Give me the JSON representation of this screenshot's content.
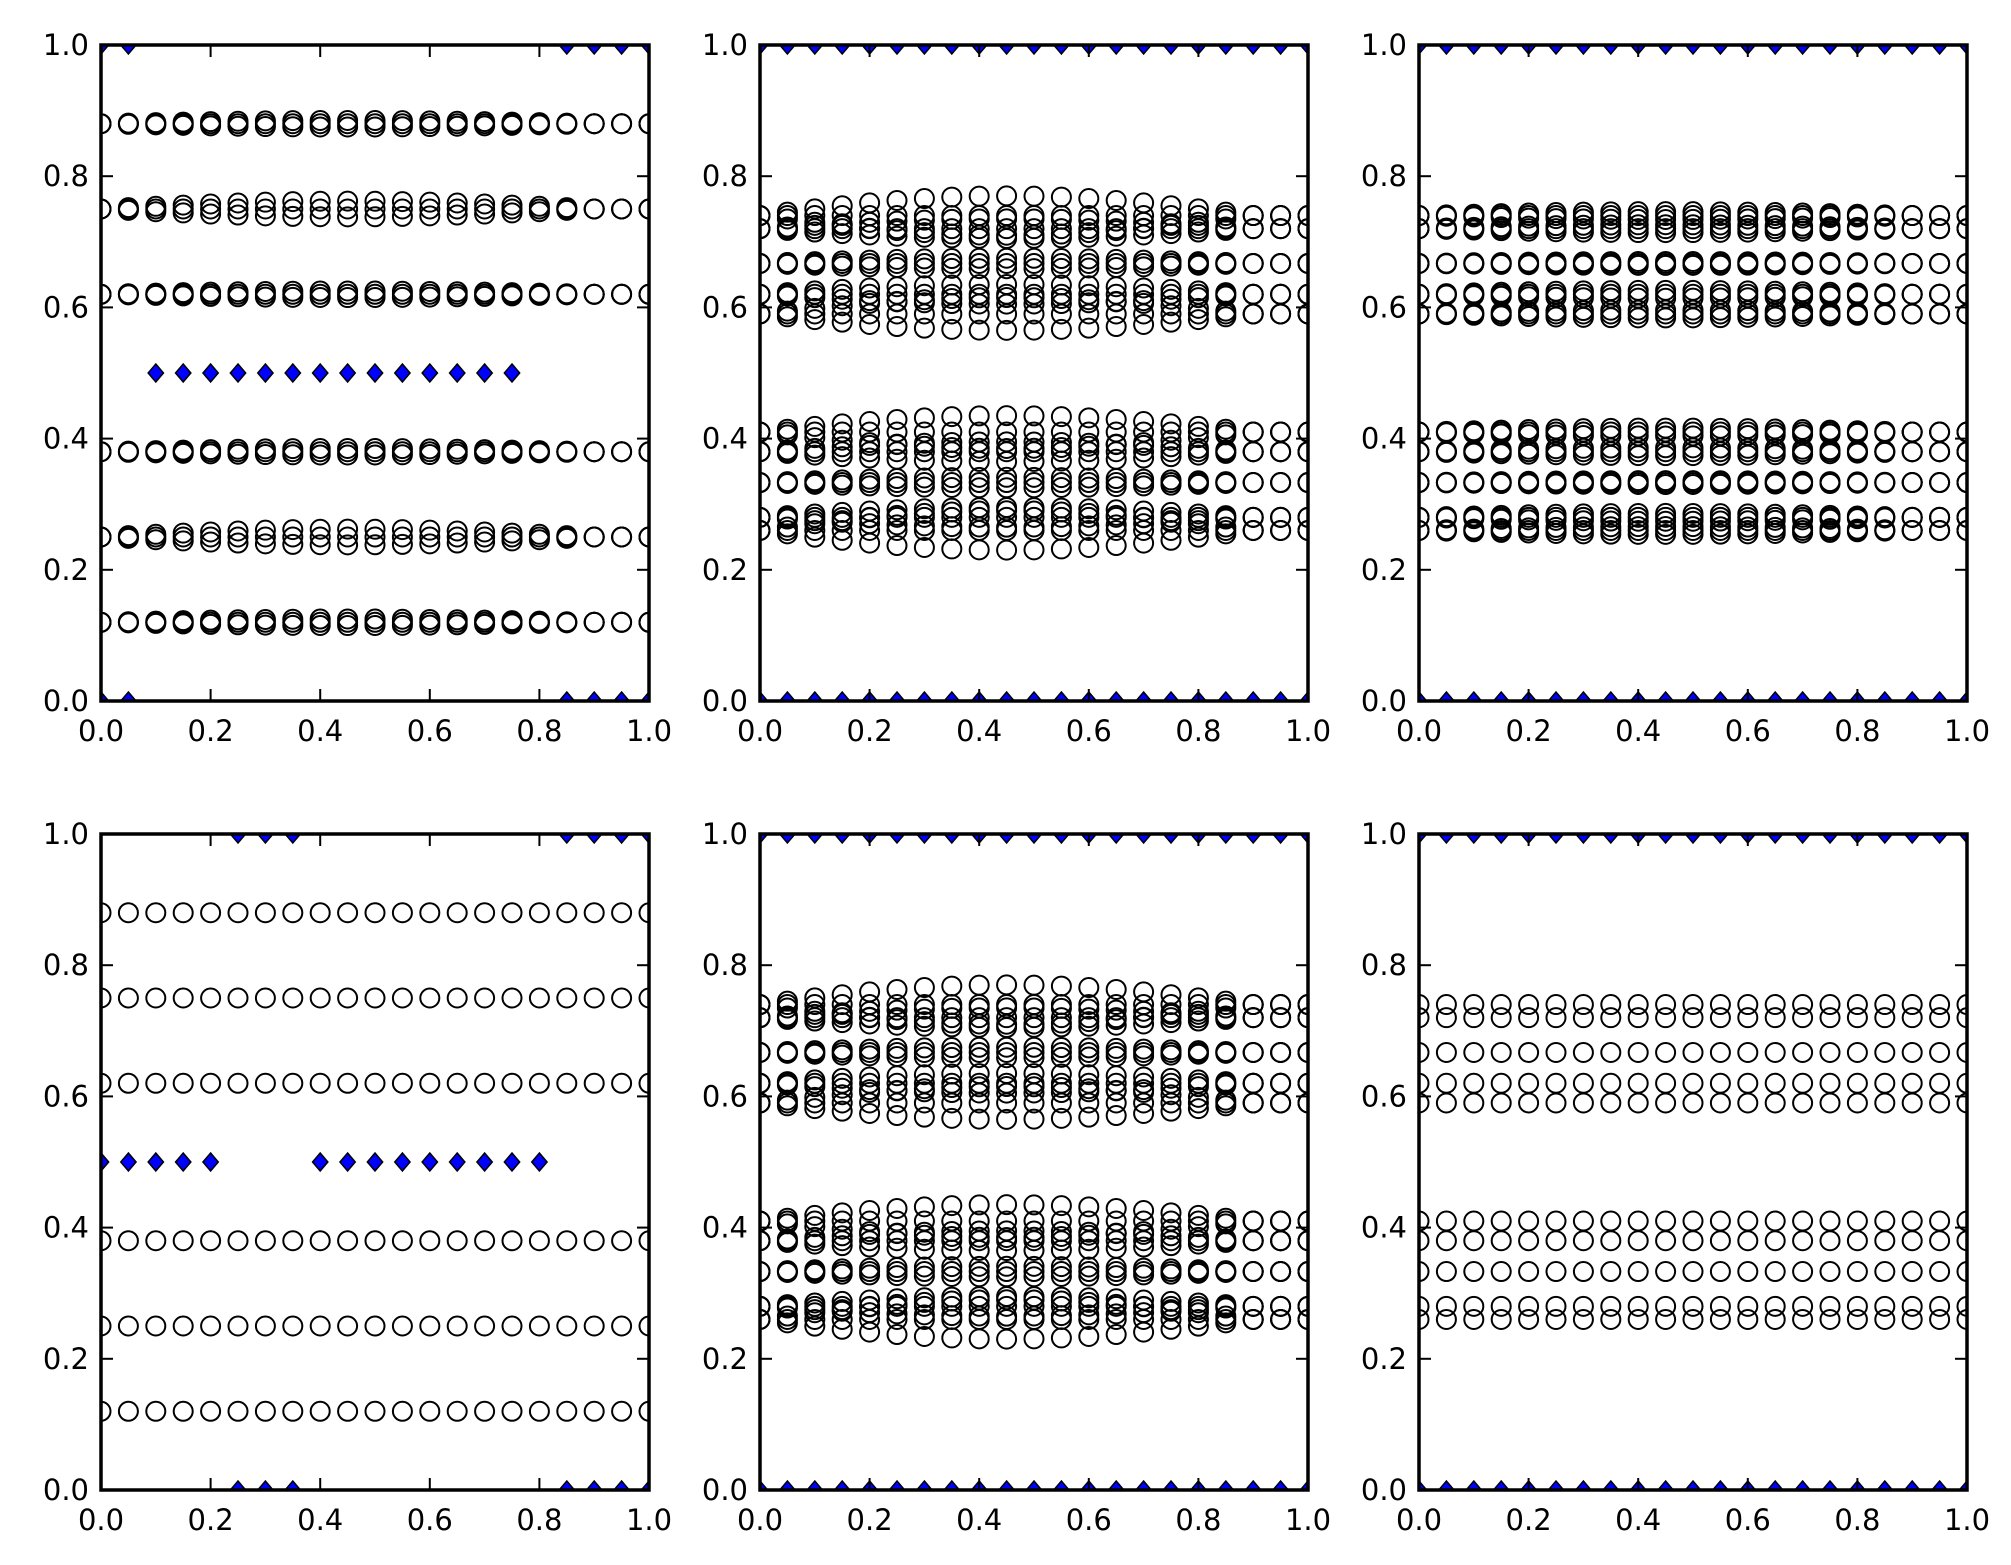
{
  "colors": {
    "diamond_fill": "#0000ff",
    "marker_edge": "#000000",
    "background": "#ffffff"
  },
  "x_tick_labels": [
    "0.0",
    "0.2",
    "0.4",
    "0.6",
    "0.8",
    "1.0"
  ],
  "y_tick_labels": [
    "0.0",
    "0.2",
    "0.4",
    "0.6",
    "0.8",
    "1.0"
  ],
  "chart_data": [
    {
      "type": "scatter",
      "xlim": [
        0,
        1
      ],
      "ylim": [
        0,
        1
      ],
      "circles": {
        "x": [
          0,
          0.05,
          0.1,
          0.15,
          0.2,
          0.25,
          0.3,
          0.35,
          0.4,
          0.45,
          0.5,
          0.55,
          0.6,
          0.65,
          0.7,
          0.75,
          0.8,
          0.85,
          0.9,
          0.95,
          1.0
        ],
        "levels": [
          {
            "y": 0.88,
            "amp": 0.005
          },
          {
            "y": 0.75,
            "amp": 0.012
          },
          {
            "y": 0.62,
            "amp": 0.005
          },
          {
            "y": 0.38,
            "amp": 0.005
          },
          {
            "y": 0.25,
            "amp": 0.012
          },
          {
            "y": 0.12,
            "amp": 0.005
          }
        ]
      },
      "diamonds": [
        {
          "x": [
            0.1,
            0.15,
            0.2,
            0.25,
            0.3,
            0.35,
            0.4,
            0.45,
            0.5,
            0.55,
            0.6,
            0.65,
            0.7,
            0.75
          ],
          "y": 0.5
        },
        {
          "x": [
            0,
            0.05,
            0.85,
            0.9,
            0.95,
            1.0
          ],
          "y": 1.0
        },
        {
          "x": [
            0,
            0.05,
            0.85,
            0.9,
            0.95,
            1.0
          ],
          "y": 0.0
        }
      ]
    },
    {
      "type": "scatter",
      "xlim": [
        0,
        1
      ],
      "ylim": [
        0,
        1
      ],
      "circles": {
        "x": [
          0,
          0.05,
          0.1,
          0.15,
          0.2,
          0.25,
          0.3,
          0.35,
          0.4,
          0.45,
          0.5,
          0.55,
          0.6,
          0.65,
          0.7,
          0.75,
          0.8,
          0.85,
          0.9,
          0.95,
          1.0
        ],
        "levels": [
          {
            "y": 0.74,
            "amp": 0.03
          },
          {
            "y": 0.72,
            "amp": 0.015
          },
          {
            "y": 0.667,
            "amp": 0.008
          },
          {
            "y": 0.62,
            "amp": 0.015
          },
          {
            "y": 0.59,
            "amp": 0.025
          },
          {
            "y": 0.41,
            "amp": 0.025
          },
          {
            "y": 0.38,
            "amp": 0.015
          },
          {
            "y": 0.333,
            "amp": 0.008
          },
          {
            "y": 0.28,
            "amp": 0.015
          },
          {
            "y": 0.26,
            "amp": 0.03
          }
        ]
      },
      "diamonds": [
        {
          "x": [
            0,
            0.05,
            0.1,
            0.15,
            0.2,
            0.25,
            0.3,
            0.35,
            0.4,
            0.45,
            0.5,
            0.55,
            0.6,
            0.65,
            0.7,
            0.75,
            0.8,
            0.85,
            0.9,
            0.95,
            1.0
          ],
          "y": 1.0
        },
        {
          "x": [
            0,
            0.05,
            0.1,
            0.15,
            0.2,
            0.25,
            0.3,
            0.35,
            0.4,
            0.45,
            0.5,
            0.55,
            0.6,
            0.65,
            0.7,
            0.75,
            0.8,
            0.85,
            0.9,
            0.95,
            1.0
          ],
          "y": 0.0
        }
      ]
    },
    {
      "type": "scatter",
      "xlim": [
        0,
        1
      ],
      "ylim": [
        0,
        1
      ],
      "circles": {
        "x": [
          0,
          0.05,
          0.1,
          0.15,
          0.2,
          0.25,
          0.3,
          0.35,
          0.4,
          0.45,
          0.5,
          0.55,
          0.6,
          0.65,
          0.7,
          0.75,
          0.8,
          0.85,
          0.9,
          0.95,
          1.0
        ],
        "levels": [
          {
            "y": 0.74,
            "amp": 0.006
          },
          {
            "y": 0.72,
            "amp": 0.006
          },
          {
            "y": 0.667,
            "amp": 0.003
          },
          {
            "y": 0.62,
            "amp": 0.006
          },
          {
            "y": 0.59,
            "amp": 0.006
          },
          {
            "y": 0.41,
            "amp": 0.006
          },
          {
            "y": 0.38,
            "amp": 0.006
          },
          {
            "y": 0.333,
            "amp": 0.003
          },
          {
            "y": 0.28,
            "amp": 0.006
          },
          {
            "y": 0.26,
            "amp": 0.006
          }
        ]
      },
      "diamonds": [
        {
          "x": [
            0,
            0.05,
            0.1,
            0.15,
            0.2,
            0.25,
            0.3,
            0.35,
            0.4,
            0.45,
            0.5,
            0.55,
            0.6,
            0.65,
            0.7,
            0.75,
            0.8,
            0.85,
            0.9,
            0.95,
            1.0
          ],
          "y": 1.0
        },
        {
          "x": [
            0,
            0.05,
            0.1,
            0.15,
            0.2,
            0.25,
            0.3,
            0.35,
            0.4,
            0.45,
            0.5,
            0.55,
            0.6,
            0.65,
            0.7,
            0.75,
            0.8,
            0.85,
            0.9,
            0.95,
            1.0
          ],
          "y": 0.0
        }
      ]
    },
    {
      "type": "scatter",
      "xlim": [
        0,
        1
      ],
      "ylim": [
        0,
        1
      ],
      "circles": {
        "x": [
          0,
          0.05,
          0.1,
          0.15,
          0.2,
          0.25,
          0.3,
          0.35,
          0.4,
          0.45,
          0.5,
          0.55,
          0.6,
          0.65,
          0.7,
          0.75,
          0.8,
          0.85,
          0.9,
          0.95,
          1.0
        ],
        "levels": [
          {
            "y": 0.88,
            "amp": 0
          },
          {
            "y": 0.75,
            "amp": 0
          },
          {
            "y": 0.62,
            "amp": 0
          },
          {
            "y": 0.38,
            "amp": 0
          },
          {
            "y": 0.25,
            "amp": 0
          },
          {
            "y": 0.12,
            "amp": 0
          }
        ]
      },
      "diamonds": [
        {
          "x": [
            0,
            0.05,
            0.1,
            0.15,
            0.2,
            0.4,
            0.45,
            0.5,
            0.55,
            0.6,
            0.65,
            0.7,
            0.75,
            0.8
          ],
          "y": 0.5
        },
        {
          "x": [
            0.25,
            0.3,
            0.35,
            0.85,
            0.9,
            0.95,
            1.0
          ],
          "y": 1.0
        },
        {
          "x": [
            0.25,
            0.3,
            0.35,
            0.85,
            0.9,
            0.95,
            1.0
          ],
          "y": 0.0
        }
      ]
    },
    {
      "type": "scatter",
      "xlim": [
        0,
        1
      ],
      "ylim": [
        0,
        1
      ],
      "circles": {
        "x": [
          0,
          0.05,
          0.1,
          0.15,
          0.2,
          0.25,
          0.3,
          0.35,
          0.4,
          0.45,
          0.5,
          0.55,
          0.6,
          0.65,
          0.7,
          0.75,
          0.8,
          0.85,
          0.9,
          0.95,
          1.0
        ],
        "levels": [
          {
            "y": 0.74,
            "amp": 0.03
          },
          {
            "y": 0.72,
            "amp": 0.015
          },
          {
            "y": 0.667,
            "amp": 0.008
          },
          {
            "y": 0.62,
            "amp": 0.015
          },
          {
            "y": 0.59,
            "amp": 0.025
          },
          {
            "y": 0.41,
            "amp": 0.025
          },
          {
            "y": 0.38,
            "amp": 0.015
          },
          {
            "y": 0.333,
            "amp": 0.008
          },
          {
            "y": 0.28,
            "amp": 0.015
          },
          {
            "y": 0.26,
            "amp": 0.03
          }
        ]
      },
      "diamonds": [
        {
          "x": [
            0,
            0.05,
            0.1,
            0.15,
            0.2,
            0.25,
            0.3,
            0.35,
            0.4,
            0.45,
            0.5,
            0.55,
            0.6,
            0.65,
            0.7,
            0.75,
            0.8,
            0.85,
            0.9,
            0.95,
            1.0
          ],
          "y": 1.0
        },
        {
          "x": [
            0,
            0.05,
            0.1,
            0.15,
            0.2,
            0.25,
            0.3,
            0.35,
            0.4,
            0.45,
            0.5,
            0.55,
            0.6,
            0.65,
            0.7,
            0.75,
            0.8,
            0.85,
            0.9,
            0.95,
            1.0
          ],
          "y": 0.0
        }
      ]
    },
    {
      "type": "scatter",
      "xlim": [
        0,
        1
      ],
      "ylim": [
        0,
        1
      ],
      "circles": {
        "x": [
          0,
          0.05,
          0.1,
          0.15,
          0.2,
          0.25,
          0.3,
          0.35,
          0.4,
          0.45,
          0.5,
          0.55,
          0.6,
          0.65,
          0.7,
          0.75,
          0.8,
          0.85,
          0.9,
          0.95,
          1.0
        ],
        "levels": [
          {
            "y": 0.74,
            "amp": 0
          },
          {
            "y": 0.72,
            "amp": 0
          },
          {
            "y": 0.667,
            "amp": 0
          },
          {
            "y": 0.62,
            "amp": 0
          },
          {
            "y": 0.59,
            "amp": 0
          },
          {
            "y": 0.41,
            "amp": 0
          },
          {
            "y": 0.38,
            "amp": 0
          },
          {
            "y": 0.333,
            "amp": 0
          },
          {
            "y": 0.28,
            "amp": 0
          },
          {
            "y": 0.26,
            "amp": 0
          }
        ]
      },
      "diamonds": [
        {
          "x": [
            0,
            0.05,
            0.1,
            0.15,
            0.2,
            0.25,
            0.3,
            0.35,
            0.4,
            0.45,
            0.5,
            0.55,
            0.6,
            0.65,
            0.7,
            0.75,
            0.8,
            0.85,
            0.9,
            0.95,
            1.0
          ],
          "y": 1.0
        },
        {
          "x": [
            0,
            0.05,
            0.1,
            0.15,
            0.2,
            0.25,
            0.3,
            0.35,
            0.4,
            0.45,
            0.5,
            0.55,
            0.6,
            0.65,
            0.7,
            0.75,
            0.8,
            0.85,
            0.9,
            0.95,
            1.0
          ],
          "y": 0.0
        }
      ]
    }
  ]
}
